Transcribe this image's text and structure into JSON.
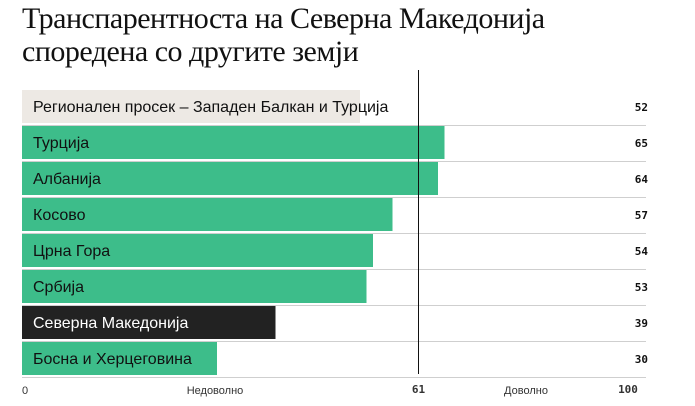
{
  "title_line1": "Транспарентноста на Северна Македонија",
  "title_line2": "споредена со другите земји",
  "colors": {
    "green": "#3dbd8a",
    "regional": "#ede9e4",
    "north_macedonia": "#222222",
    "marker": "#111111",
    "separator": "#cfcfcf"
  },
  "chart_data": {
    "type": "bar",
    "orientation": "horizontal",
    "title": "Транспарентноста на Северна Македонија споредена со другите земји",
    "categories": [
      "Регионален просек – Западен Балкан и Турција",
      "Турција",
      "Албанија",
      "Косово",
      "Црна Гора",
      "Србија",
      "Северна Македонија",
      "Босна и Херцеговина"
    ],
    "values": [
      52,
      65,
      64,
      57,
      54,
      53,
      39,
      30
    ],
    "bar_styles": [
      "regional",
      "green",
      "green",
      "green",
      "green",
      "green",
      "north_macedonia",
      "green"
    ],
    "xlim": [
      0,
      100
    ],
    "threshold": 61,
    "axis": {
      "min_label": "0",
      "max_label": "100",
      "threshold_label": "61",
      "left_text": "Недоволно",
      "right_text": "Доволно"
    }
  }
}
